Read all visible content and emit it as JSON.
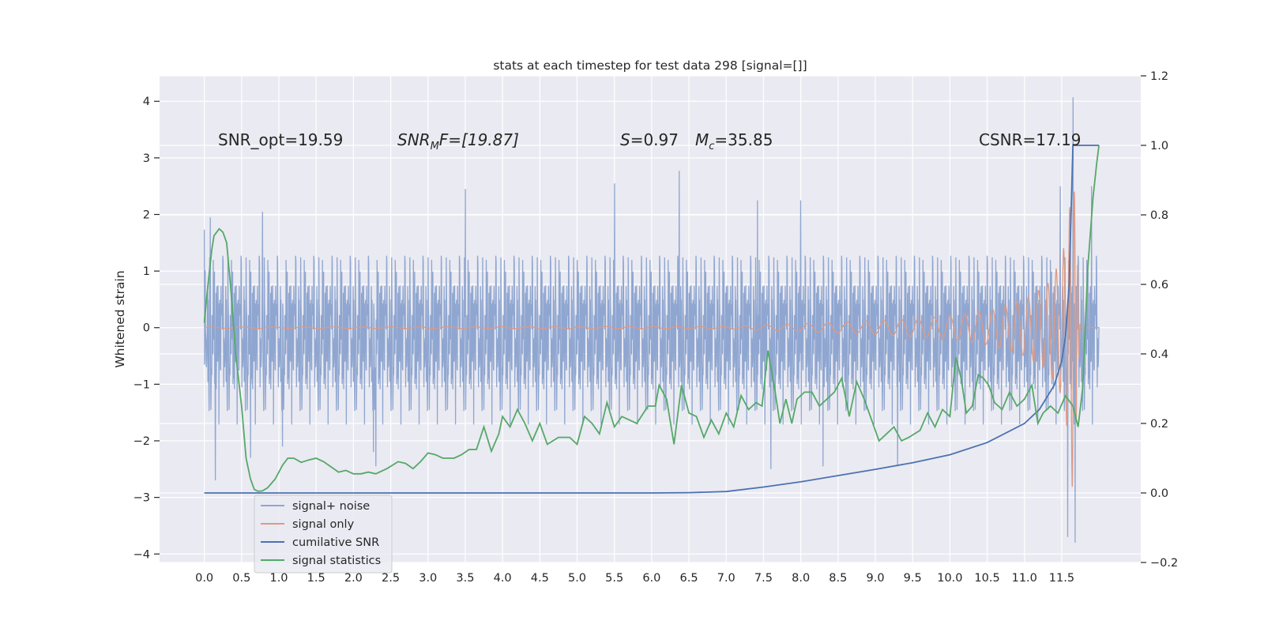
{
  "chart_data": {
    "type": "line",
    "title": "stats at each timestep for test data 298 [signal=[]]",
    "xlabel": "",
    "ylabel": "Whitened strain",
    "xlim": [
      -0.6,
      12.56
    ],
    "ylim": [
      -4.15,
      4.45
    ],
    "y2lim": [
      -0.2,
      1.2
    ],
    "grid": true,
    "x_ticks": [
      0.0,
      0.5,
      1.0,
      1.5,
      2.0,
      2.5,
      3.0,
      3.5,
      4.0,
      4.5,
      5.0,
      5.5,
      6.0,
      6.5,
      7.0,
      7.5,
      8.0,
      8.5,
      9.0,
      9.5,
      10.0,
      10.5,
      11.0,
      11.5
    ],
    "x_tick_labels": [
      "0.0",
      "0.5",
      "1.0",
      "1.5",
      "2.0",
      "2.5",
      "3.0",
      "3.5",
      "4.0",
      "4.5",
      "5.0",
      "5.5",
      "6.0",
      "6.5",
      "7.0",
      "7.5",
      "8.0",
      "8.5",
      "9.0",
      "9.5",
      "10.0",
      "10.5",
      "11.0",
      "11.5"
    ],
    "y_ticks": [
      -4,
      -3,
      -2,
      -1,
      0,
      1,
      2,
      3,
      4
    ],
    "y_tick_labels": [
      "−4",
      "−3",
      "−2",
      "−1",
      "0",
      "1",
      "2",
      "3",
      "4"
    ],
    "y2_ticks": [
      -0.2,
      0.0,
      0.2,
      0.4,
      0.6,
      0.8,
      1.0,
      1.2
    ],
    "y2_tick_labels": [
      "−0.2",
      "0.0",
      "0.2",
      "0.4",
      "0.6",
      "0.8",
      "1.0",
      "1.2"
    ],
    "annotations": {
      "snr_opt": "SNR_opt=19.59",
      "snr_mf_sym": "SNR",
      "snr_mf_sub": "M",
      "snr_mf_rest": "F=[19.87]",
      "s_sym": "S",
      "s_rest": "=0.97",
      "mc_sym": "M",
      "mc_sub": "c",
      "mc_rest": "=35.85",
      "csnr": "CSNR=17.19"
    },
    "series": [
      {
        "name": "signal+ noise",
        "axis": "left",
        "color": "#8fa6d0",
        "description": "whitened noisy strain, roughly N(0,0.7) with spikes up to about 2.5",
        "x_range": [
          0.0,
          12.0
        ],
        "spikes": [
          {
            "x": 0.0,
            "y": 1.73
          },
          {
            "x": 0.08,
            "y": 1.95
          },
          {
            "x": 0.15,
            "y": -2.7
          },
          {
            "x": 0.62,
            "y": -2.3
          },
          {
            "x": 0.78,
            "y": 2.05
          },
          {
            "x": 1.05,
            "y": -2.1
          },
          {
            "x": 2.27,
            "y": -2.2
          },
          {
            "x": 2.3,
            "y": -2.45
          },
          {
            "x": 3.5,
            "y": 2.45
          },
          {
            "x": 5.5,
            "y": 2.55
          },
          {
            "x": 6.37,
            "y": 2.77
          },
          {
            "x": 7.42,
            "y": 2.25
          },
          {
            "x": 7.6,
            "y": -2.5
          },
          {
            "x": 8.0,
            "y": 2.25
          },
          {
            "x": 8.3,
            "y": -2.45
          },
          {
            "x": 9.3,
            "y": -2.45
          },
          {
            "x": 11.48,
            "y": 2.5
          },
          {
            "x": 11.58,
            "y": -3.7
          },
          {
            "x": 11.65,
            "y": 4.07
          },
          {
            "x": 11.68,
            "y": -3.8
          },
          {
            "x": 11.9,
            "y": 2.5
          }
        ]
      },
      {
        "name": "signal only",
        "axis": "left",
        "color": "#dd9a84",
        "description": "chirp signal with growing amplitude",
        "envelope": [
          {
            "x": 0.0,
            "a": 0.01
          },
          {
            "x": 7.0,
            "a": 0.02
          },
          {
            "x": 9.0,
            "a": 0.12
          },
          {
            "x": 10.0,
            "a": 0.2
          },
          {
            "x": 10.5,
            "a": 0.3
          },
          {
            "x": 11.0,
            "a": 0.5
          },
          {
            "x": 11.3,
            "a": 0.75
          },
          {
            "x": 11.5,
            "a": 1.2
          },
          {
            "x": 11.6,
            "a": 2.0
          },
          {
            "x": 11.65,
            "a": 3.0
          },
          {
            "x": 11.7,
            "a": 1.5
          },
          {
            "x": 11.75,
            "a": 0.0
          }
        ]
      },
      {
        "name": "cumilative SNR",
        "axis": "right",
        "color": "#4c72b0",
        "points": [
          [
            0.0,
            0.0
          ],
          [
            6.0,
            0.0
          ],
          [
            6.5,
            0.001
          ],
          [
            7.0,
            0.004
          ],
          [
            7.5,
            0.017
          ],
          [
            8.0,
            0.032
          ],
          [
            8.5,
            0.05
          ],
          [
            9.0,
            0.068
          ],
          [
            9.5,
            0.087
          ],
          [
            10.0,
            0.11
          ],
          [
            10.5,
            0.145
          ],
          [
            11.0,
            0.2
          ],
          [
            11.2,
            0.24
          ],
          [
            11.4,
            0.31
          ],
          [
            11.5,
            0.38
          ],
          [
            11.55,
            0.45
          ],
          [
            11.6,
            0.6
          ],
          [
            11.65,
            1.0
          ],
          [
            12.0,
            1.0
          ]
        ]
      },
      {
        "name": "signal statistics",
        "axis": "right",
        "color": "#55a868",
        "points": [
          [
            0.0,
            0.49
          ],
          [
            0.05,
            0.6
          ],
          [
            0.1,
            0.7
          ],
          [
            0.13,
            0.74
          ],
          [
            0.2,
            0.76
          ],
          [
            0.25,
            0.75
          ],
          [
            0.3,
            0.72
          ],
          [
            0.35,
            0.6
          ],
          [
            0.38,
            0.52
          ],
          [
            0.42,
            0.4
          ],
          [
            0.5,
            0.25
          ],
          [
            0.56,
            0.1
          ],
          [
            0.62,
            0.04
          ],
          [
            0.67,
            0.01
          ],
          [
            0.72,
            0.005
          ],
          [
            0.78,
            0.006
          ],
          [
            0.85,
            0.015
          ],
          [
            0.95,
            0.04
          ],
          [
            1.05,
            0.08
          ],
          [
            1.12,
            0.1
          ],
          [
            1.2,
            0.1
          ],
          [
            1.3,
            0.088
          ],
          [
            1.4,
            0.095
          ],
          [
            1.5,
            0.1
          ],
          [
            1.6,
            0.09
          ],
          [
            1.7,
            0.075
          ],
          [
            1.8,
            0.06
          ],
          [
            1.9,
            0.065
          ],
          [
            2.0,
            0.055
          ],
          [
            2.1,
            0.055
          ],
          [
            2.2,
            0.06
          ],
          [
            2.3,
            0.055
          ],
          [
            2.35,
            0.06
          ],
          [
            2.45,
            0.07
          ],
          [
            2.6,
            0.09
          ],
          [
            2.7,
            0.085
          ],
          [
            2.8,
            0.07
          ],
          [
            2.9,
            0.09
          ],
          [
            3.0,
            0.115
          ],
          [
            3.1,
            0.11
          ],
          [
            3.2,
            0.1
          ],
          [
            3.35,
            0.1
          ],
          [
            3.45,
            0.11
          ],
          [
            3.55,
            0.125
          ],
          [
            3.65,
            0.125
          ],
          [
            3.75,
            0.19
          ],
          [
            3.85,
            0.12
          ],
          [
            3.95,
            0.17
          ],
          [
            4.0,
            0.22
          ],
          [
            4.1,
            0.19
          ],
          [
            4.2,
            0.24
          ],
          [
            4.3,
            0.2
          ],
          [
            4.4,
            0.15
          ],
          [
            4.5,
            0.2
          ],
          [
            4.6,
            0.14
          ],
          [
            4.75,
            0.16
          ],
          [
            4.9,
            0.16
          ],
          [
            5.0,
            0.14
          ],
          [
            5.1,
            0.22
          ],
          [
            5.2,
            0.2
          ],
          [
            5.3,
            0.17
          ],
          [
            5.4,
            0.26
          ],
          [
            5.5,
            0.19
          ],
          [
            5.6,
            0.22
          ],
          [
            5.7,
            0.21
          ],
          [
            5.8,
            0.2
          ],
          [
            5.95,
            0.25
          ],
          [
            6.05,
            0.25
          ],
          [
            6.1,
            0.31
          ],
          [
            6.2,
            0.27
          ],
          [
            6.3,
            0.14
          ],
          [
            6.4,
            0.31
          ],
          [
            6.5,
            0.23
          ],
          [
            6.6,
            0.22
          ],
          [
            6.7,
            0.16
          ],
          [
            6.8,
            0.21
          ],
          [
            6.9,
            0.17
          ],
          [
            7.0,
            0.23
          ],
          [
            7.1,
            0.19
          ],
          [
            7.2,
            0.28
          ],
          [
            7.3,
            0.24
          ],
          [
            7.4,
            0.26
          ],
          [
            7.48,
            0.25
          ],
          [
            7.56,
            0.41
          ],
          [
            7.65,
            0.3
          ],
          [
            7.72,
            0.2
          ],
          [
            7.8,
            0.27
          ],
          [
            7.88,
            0.2
          ],
          [
            7.95,
            0.27
          ],
          [
            8.05,
            0.29
          ],
          [
            8.15,
            0.29
          ],
          [
            8.25,
            0.25
          ],
          [
            8.35,
            0.27
          ],
          [
            8.45,
            0.29
          ],
          [
            8.55,
            0.33
          ],
          [
            8.65,
            0.22
          ],
          [
            8.75,
            0.32
          ],
          [
            8.85,
            0.27
          ],
          [
            8.95,
            0.21
          ],
          [
            9.05,
            0.15
          ],
          [
            9.15,
            0.17
          ],
          [
            9.25,
            0.19
          ],
          [
            9.35,
            0.15
          ],
          [
            9.45,
            0.16
          ],
          [
            9.6,
            0.18
          ],
          [
            9.7,
            0.23
          ],
          [
            9.8,
            0.19
          ],
          [
            9.9,
            0.24
          ],
          [
            10.0,
            0.22
          ],
          [
            10.08,
            0.39
          ],
          [
            10.15,
            0.33
          ],
          [
            10.22,
            0.23
          ],
          [
            10.3,
            0.25
          ],
          [
            10.38,
            0.34
          ],
          [
            10.45,
            0.33
          ],
          [
            10.52,
            0.31
          ],
          [
            10.6,
            0.26
          ],
          [
            10.7,
            0.24
          ],
          [
            10.8,
            0.29
          ],
          [
            10.9,
            0.25
          ],
          [
            11.0,
            0.27
          ],
          [
            11.1,
            0.31
          ],
          [
            11.18,
            0.2
          ],
          [
            11.25,
            0.23
          ],
          [
            11.35,
            0.25
          ],
          [
            11.45,
            0.23
          ],
          [
            11.55,
            0.28
          ],
          [
            11.65,
            0.25
          ],
          [
            11.72,
            0.19
          ],
          [
            11.78,
            0.3
          ],
          [
            11.85,
            0.65
          ],
          [
            11.92,
            0.85
          ],
          [
            11.97,
            0.95
          ],
          [
            12.0,
            1.0
          ]
        ]
      }
    ],
    "legend": {
      "location": "lower-left",
      "entries": [
        {
          "label": "signal+ noise",
          "color": "#8fa6d0"
        },
        {
          "label": "signal only",
          "color": "#dd9a84"
        },
        {
          "label": "cumilative SNR",
          "color": "#4c72b0"
        },
        {
          "label": "signal statistics",
          "color": "#55a868"
        }
      ]
    },
    "style": {
      "axes_background": "#eaeaf2",
      "grid_color": "#ffffff"
    }
  }
}
